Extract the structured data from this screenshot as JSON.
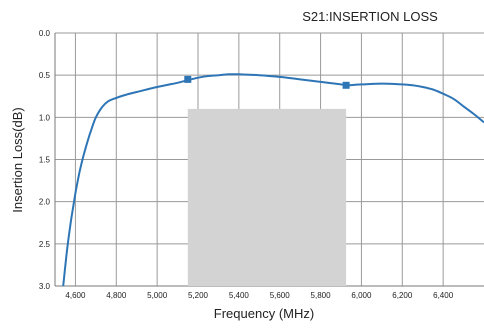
{
  "chart_data": {
    "type": "line",
    "title": "S21:INSERTION LOSS",
    "xlabel": "Frequency (MHz)",
    "ylabel": "Insertion Loss(dB)",
    "xlim": [
      4500,
      6600
    ],
    "ylim": [
      0,
      3.0
    ],
    "y_inverted": true,
    "grid": true,
    "x_ticks": [
      4600,
      4800,
      5000,
      5200,
      5400,
      5600,
      5800,
      6000,
      6200,
      6400
    ],
    "x_tick_labels": [
      "4,600",
      "4,800",
      "5,000",
      "5,200",
      "5,400",
      "5,600",
      "5,800",
      "6,000",
      "6,200",
      "6,400"
    ],
    "y_ticks": [
      0.0,
      0.5,
      1.0,
      1.5,
      2.0,
      2.5,
      3.0
    ],
    "y_tick_labels": [
      "0.0",
      "0.5",
      "1.0",
      "1.5",
      "2.0",
      "2.5",
      "3.0"
    ],
    "shaded_region": {
      "x": [
        5150,
        5925
      ],
      "y": [
        0.9,
        3.0
      ],
      "color": "#d3d3d3"
    },
    "series": [
      {
        "color": "#2e75b6",
        "x": [
          4540,
          4560,
          4580,
          4600,
          4620,
          4640,
          4660,
          4680,
          4700,
          4730,
          4760,
          4800,
          4850,
          4900,
          5000,
          5100,
          5150,
          5200,
          5250,
          5300,
          5350,
          5400,
          5500,
          5600,
          5700,
          5800,
          5900,
          5925,
          6000,
          6100,
          6200,
          6250,
          6300,
          6350,
          6400,
          6450,
          6500,
          6550,
          6600
        ],
        "y": [
          3.0,
          2.55,
          2.2,
          1.9,
          1.65,
          1.45,
          1.28,
          1.13,
          1.0,
          0.88,
          0.81,
          0.77,
          0.73,
          0.7,
          0.64,
          0.59,
          0.56,
          0.53,
          0.51,
          0.5,
          0.49,
          0.49,
          0.5,
          0.52,
          0.55,
          0.58,
          0.61,
          0.62,
          0.61,
          0.6,
          0.61,
          0.62,
          0.64,
          0.67,
          0.72,
          0.78,
          0.87,
          0.96,
          1.06
        ]
      }
    ],
    "markers": [
      {
        "x": 5150,
        "y": 0.55
      },
      {
        "x": 5925,
        "y": 0.62
      }
    ]
  }
}
